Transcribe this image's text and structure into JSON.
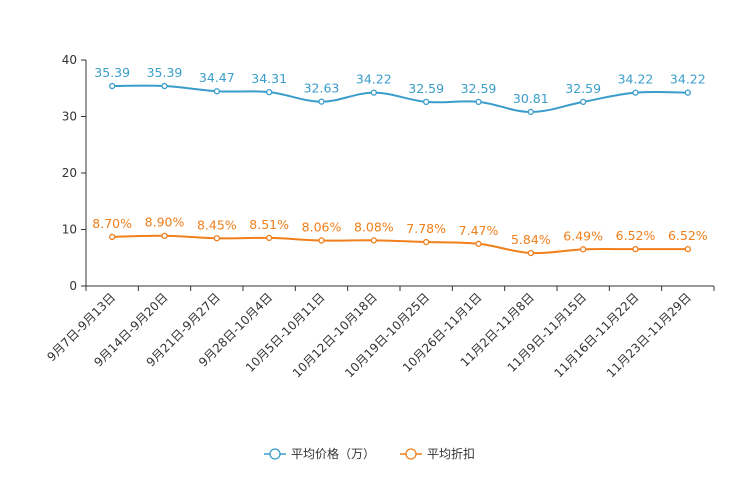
{
  "chart_data": {
    "type": "line",
    "categories": [
      "9月7日-9月13日",
      "9月14日-9月20日",
      "9月21日-9月27日",
      "9月28日-10月4日",
      "10月5日-10月11日",
      "10月12日-10月18日",
      "10月19日-10月25日",
      "10月26日-11月1日",
      "11月2日-11月8日",
      "11月9日-11月15日",
      "11月16日-11月22日",
      "11月23日-11月29日"
    ],
    "series": [
      {
        "name": "平均价格（万）",
        "color": "#3b9dcb",
        "values": [
          35.39,
          35.39,
          34.47,
          34.31,
          32.63,
          34.22,
          32.59,
          32.59,
          30.81,
          32.59,
          34.22,
          34.22
        ],
        "labels": [
          "35.39",
          "35.39",
          "34.47",
          "34.31",
          "32.63",
          "34.22",
          "32.59",
          "32.59",
          "30.81",
          "32.59",
          "34.22",
          "34.22"
        ]
      },
      {
        "name": "平均折扣",
        "color": "#f07f1c",
        "values": [
          8.7,
          8.9,
          8.45,
          8.51,
          8.06,
          8.08,
          7.78,
          7.47,
          5.84,
          6.49,
          6.52,
          6.52
        ],
        "labels": [
          "8.70%",
          "8.90%",
          "8.45%",
          "8.51%",
          "8.06%",
          "8.08%",
          "7.78%",
          "7.47%",
          "5.84%",
          "6.49%",
          "6.52%",
          "6.52%"
        ]
      }
    ],
    "y_ticks": [
      "0",
      "10",
      "20",
      "30",
      "40"
    ],
    "ylim": [
      0,
      40
    ],
    "title": "",
    "xlabel": "",
    "ylabel": "",
    "legend_position": "bottom-center",
    "grid": false
  }
}
